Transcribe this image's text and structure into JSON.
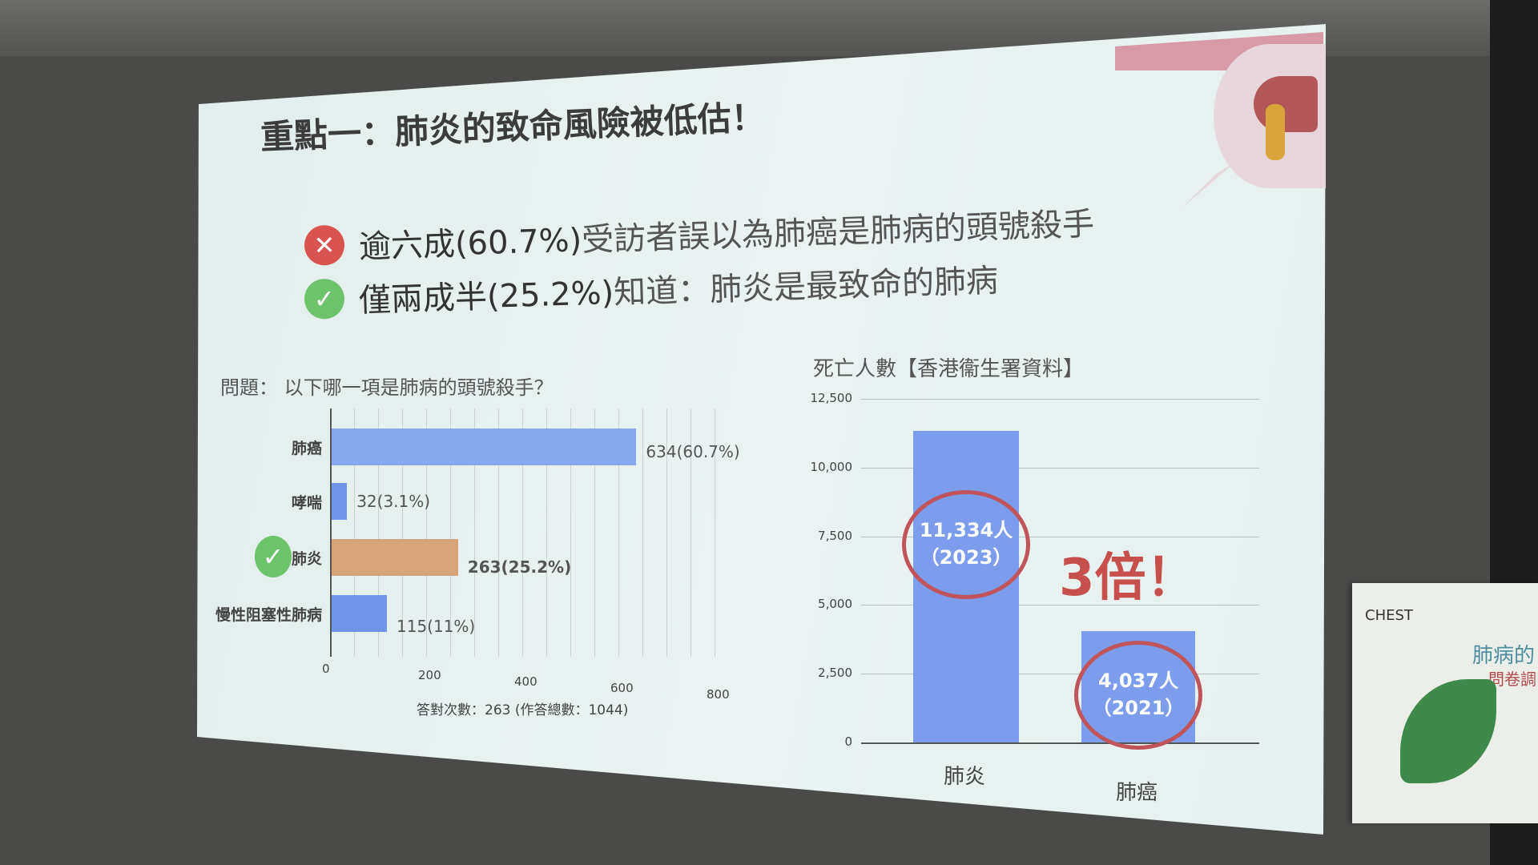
{
  "slide": {
    "title": "重點一：肺炎的致命風險被低估！",
    "bullets": [
      {
        "icon": "x-circle-icon",
        "color": "#d9534f",
        "strong": "逾六成(60.7%)",
        "light": "受訪者誤以為肺癌是肺病的頭號殺手"
      },
      {
        "icon": "check-circle-icon",
        "color": "#6cc36a",
        "strong": "僅兩成半(25.2%)",
        "light": "知道：肺炎是最致命的肺病"
      }
    ],
    "emphasis": "3倍！"
  },
  "chart_data": [
    {
      "type": "bar",
      "orientation": "horizontal",
      "title": "問題： 以下哪一項是肺病的頭號殺手？",
      "categories": [
        "肺癌",
        "哮喘",
        "肺炎",
        "慢性阻塞性肺病"
      ],
      "values": [
        634,
        32,
        263,
        115
      ],
      "data_labels": [
        "634(60.7%)",
        "32(3.1%)",
        "263(25.2%)",
        "115(11%)"
      ],
      "colors": [
        "#86a8ec",
        "#6f95e8",
        "#d8a57a",
        "#6f95e8"
      ],
      "correct_category": "肺炎",
      "xlim": [
        0,
        800
      ],
      "xticks": [
        "0",
        "200",
        "400",
        "600",
        "800"
      ],
      "xlabel": "答對次數：263 (作答總數：1044)",
      "grid": true
    },
    {
      "type": "bar",
      "title": "死亡人數【香港衞生署資料】",
      "categories": [
        "肺炎",
        "肺癌"
      ],
      "values": [
        11334,
        4037
      ],
      "data_labels": [
        [
          "11,334人",
          "（2023）"
        ],
        [
          "4,037人",
          "（2021）"
        ]
      ],
      "color": "#7b9deb",
      "highlight_color": "#c0545a",
      "ylim": [
        0,
        12500
      ],
      "yticks": [
        "0",
        "2,500",
        "5,000",
        "7,500",
        "10,000",
        "12,500"
      ],
      "grid": true
    }
  ],
  "standee": {
    "logo_text": "CHEST",
    "line1": "肺病的",
    "line2": "問卷調"
  }
}
